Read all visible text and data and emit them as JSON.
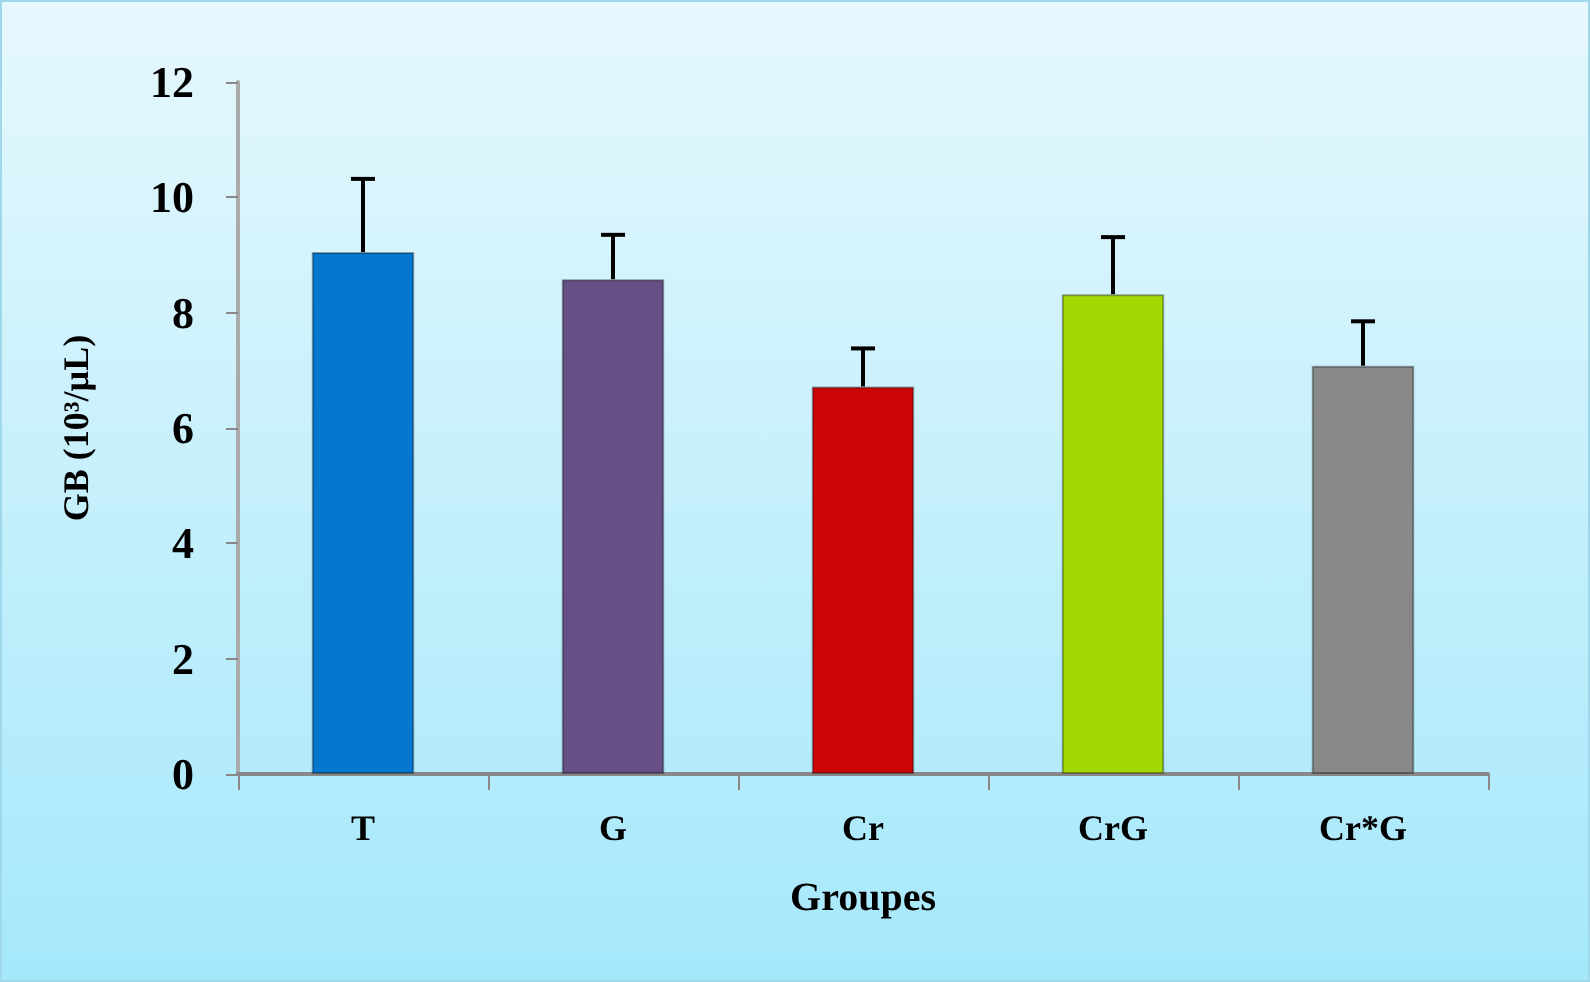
{
  "chart_data": {
    "type": "bar",
    "xlabel": "Groupes",
    "ylabel": "GB (10³/µL)",
    "categories": [
      "T",
      "G",
      "Cr",
      "CrG",
      "Cr*G"
    ],
    "values": [
      9.05,
      8.58,
      6.72,
      8.32,
      7.08
    ],
    "errors": [
      1.27,
      0.77,
      0.66,
      0.99,
      0.77
    ],
    "colors": [
      "#0577cf",
      "#675086",
      "#cc0505",
      "#a3d902",
      "#898989"
    ],
    "ylim": [
      0,
      12
    ],
    "yticks": [
      0,
      2,
      4,
      6,
      8,
      10,
      12
    ],
    "grid": false
  }
}
